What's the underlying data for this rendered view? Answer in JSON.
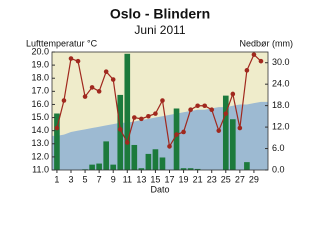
{
  "chart_data": {
    "type": "weather",
    "title": "Oslo - Blindern",
    "subtitle": "Juni 2011",
    "ylabel": "Lufttemperatur °C",
    "y2label": "Nedbør (mm)",
    "xlabel": "Dato",
    "x": [
      1,
      2,
      3,
      4,
      5,
      6,
      7,
      8,
      9,
      10,
      11,
      12,
      13,
      14,
      15,
      16,
      17,
      18,
      19,
      20,
      21,
      22,
      23,
      24,
      25,
      26,
      27,
      28,
      29,
      30
    ],
    "xlim": [
      0.3,
      31
    ],
    "xticks": [
      1,
      3,
      5,
      7,
      9,
      11,
      13,
      15,
      17,
      19,
      21,
      23,
      25,
      27,
      29
    ],
    "ylim": [
      11,
      20
    ],
    "yticks": [
      {
        "value": 11,
        "label": "11.0"
      },
      {
        "value": 12,
        "label": "12.0"
      },
      {
        "value": 13,
        "label": "13.0"
      },
      {
        "value": 14,
        "label": "14.0"
      },
      {
        "value": 15,
        "label": "15.0"
      },
      {
        "value": 16,
        "label": "16.0"
      },
      {
        "value": 17,
        "label": "17.0"
      },
      {
        "value": 18,
        "label": "18.0"
      },
      {
        "value": 19,
        "label": "19.0"
      },
      {
        "value": 20,
        "label": "20.0"
      }
    ],
    "y2lim": [
      0,
      33
    ],
    "y2ticks": [
      {
        "value": 0,
        "label": "0.0"
      },
      {
        "value": 6,
        "label": "6.0"
      },
      {
        "value": 12,
        "label": "12.0"
      },
      {
        "value": 18,
        "label": "18.0"
      },
      {
        "value": 24,
        "label": "24.0"
      },
      {
        "value": 30,
        "label": "30.0"
      }
    ],
    "background": "#efeccb",
    "series": [
      {
        "type": "area",
        "color": "#9dbad2",
        "values": [
          13.6,
          13.7,
          13.9,
          14.0,
          14.1,
          14.2,
          14.3,
          14.4,
          14.5,
          14.6,
          14.6,
          14.7,
          14.8,
          14.9,
          15.0,
          15.1,
          15.2,
          15.3,
          15.4,
          15.5,
          15.6,
          15.6,
          15.7,
          15.8,
          15.8,
          15.9,
          16.0,
          16.0,
          16.1,
          16.2
        ]
      },
      {
        "type": "bar",
        "axis": "y2",
        "color": "#1c7a3c",
        "values": [
          15.8,
          0,
          0,
          0,
          0.2,
          1.5,
          1.8,
          8,
          1.5,
          21,
          32.5,
          7,
          0.5,
          4.5,
          5.8,
          3.5,
          0,
          17.2,
          0.5,
          0.5,
          0.3,
          0,
          0,
          0,
          20.8,
          14.2,
          0,
          2.2,
          0,
          0
        ]
      },
      {
        "type": "line",
        "color": "#a0281e",
        "values": [
          14.2,
          16.3,
          19.5,
          19.3,
          16.6,
          17.3,
          17.0,
          18.5,
          17.9,
          14.1,
          13.1,
          15.0,
          14.9,
          15.1,
          15.3,
          16.3,
          12.8,
          13.7,
          13.9,
          15.6,
          15.9,
          15.9,
          15.6,
          14.0,
          15.3,
          16.8,
          14.2,
          18.6,
          19.8,
          19.3
        ]
      }
    ]
  }
}
